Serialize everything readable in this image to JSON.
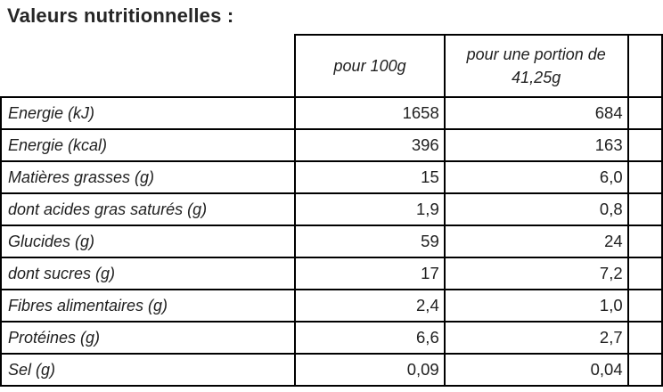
{
  "title": "Valeurs nutritionnelles :",
  "table": {
    "columns": [
      {
        "header": ""
      },
      {
        "header": "pour 100g"
      },
      {
        "header": "pour une portion de 41,25g"
      }
    ],
    "rows": [
      {
        "label": "Energie (kJ)",
        "per100g": "1658",
        "portion": "684"
      },
      {
        "label": "Energie (kcal)",
        "per100g": "396",
        "portion": "163"
      },
      {
        "label": "Matières grasses (g)",
        "per100g": "15",
        "portion": "6,0"
      },
      {
        "label": "dont acides gras saturés (g)",
        "per100g": "1,9",
        "portion": "0,8"
      },
      {
        "label": "Glucides (g)",
        "per100g": "59",
        "portion": "24"
      },
      {
        "label": "dont sucres (g)",
        "per100g": "17",
        "portion": "7,2"
      },
      {
        "label": "Fibres alimentaires (g)",
        "per100g": "2,4",
        "portion": "1,0"
      },
      {
        "label": "Protéines (g)",
        "per100g": "6,6",
        "portion": "2,7"
      },
      {
        "label": "Sel (g)",
        "per100g": "0,09",
        "portion": "0,04"
      }
    ]
  },
  "colors": {
    "border": "#000000",
    "text": "#1f1f1f",
    "background": "#ffffff"
  }
}
